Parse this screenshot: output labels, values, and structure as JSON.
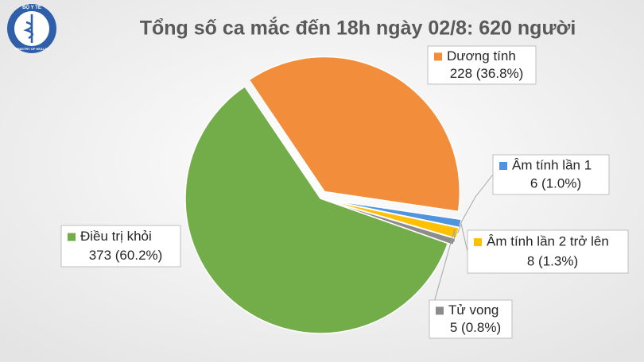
{
  "logo": {
    "top": "BỘ Y TẾ",
    "bottom": "MINISTRY OF HEALTH"
  },
  "chart_data": {
    "type": "pie",
    "title": "Tổng số ca mắc đến 18h ngày 02/8: 620 người",
    "categories": [
      "Dương tính",
      "Âm tính lần 1",
      "Âm tính lần 2 trở lên",
      "Tử vong",
      "Điều trị khỏi"
    ],
    "values": [
      228,
      6,
      8,
      5,
      373
    ],
    "value_labels": [
      "228 (36.8%)",
      "6 (1.0%)",
      "8 (1.3%)",
      "5 (0.8%)",
      "373 (60.2%)"
    ],
    "colors": [
      "#f28e3b",
      "#4f94dc",
      "#ffc000",
      "#8c8c8c",
      "#72ad4a"
    ]
  }
}
